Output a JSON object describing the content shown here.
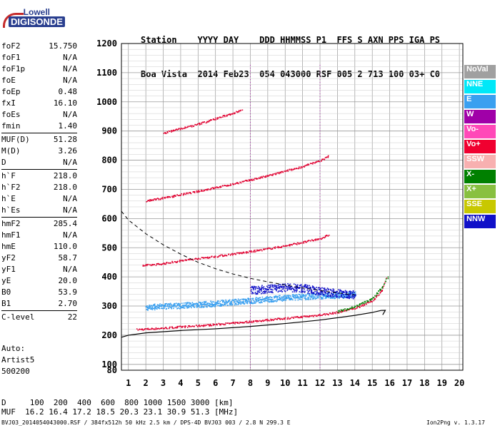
{
  "logo": {
    "line1": "Lowell",
    "line2": "DIGISONDE"
  },
  "header": {
    "row1": "Station    YYYY DAY    DDD HHMMSS P1  FFS S AXN PPS IGA PS",
    "row2": "Boa Vista  2014 Feb23  054 043000 RSF 005 2 713 100 03+ C0"
  },
  "params": [
    {
      "group": [
        {
          "name": "foF2",
          "value": "15.750"
        },
        {
          "name": "foF1",
          "value": "N/A"
        },
        {
          "name": "foF1p",
          "value": "N/A"
        },
        {
          "name": "foE",
          "value": "N/A"
        },
        {
          "name": "foEp",
          "value": "0.48"
        },
        {
          "name": "fxI",
          "value": "16.10"
        },
        {
          "name": "foEs",
          "value": "N/A"
        },
        {
          "name": "fmin",
          "value": "1.40"
        }
      ]
    },
    {
      "group": [
        {
          "name": "MUF(D)",
          "value": "51.28"
        },
        {
          "name": "M(D)",
          "value": "3.26"
        },
        {
          "name": "D",
          "value": "N/A"
        }
      ]
    },
    {
      "group": [
        {
          "name": "h`F",
          "value": "218.0"
        },
        {
          "name": "h`F2",
          "value": "218.0"
        },
        {
          "name": "h`E",
          "value": "N/A"
        },
        {
          "name": "h`Es",
          "value": "N/A"
        }
      ]
    },
    {
      "group": [
        {
          "name": "hmF2",
          "value": "285.4"
        },
        {
          "name": "hmF1",
          "value": "N/A"
        },
        {
          "name": "hmE",
          "value": "110.0"
        },
        {
          "name": "yF2",
          "value": "58.7"
        },
        {
          "name": "yF1",
          "value": "N/A"
        },
        {
          "name": "yE",
          "value": "20.0"
        },
        {
          "name": "B0",
          "value": "53.9"
        },
        {
          "name": "B1",
          "value": "2.70"
        }
      ]
    },
    {
      "group": [
        {
          "name": "C-level",
          "value": "22"
        }
      ]
    }
  ],
  "auto": {
    "line1": "Auto:",
    "line2": "Artist5",
    "line3": "500200"
  },
  "muf_table": {
    "d_row": "D     100  200  400  600  800 1000 1500 3000 [km]",
    "muf_row": "MUF  16.2 16.4 17.2 18.5 20.3 23.1 30.9 51.3 [MHz]"
  },
  "footer": {
    "left": "BVJ03_2014054043000.RSF / 384fx512h 50 kHz 2.5 km / DPS-4D BVJ03 003 / 2.8 N 299.3 E",
    "right": "Ion2Png v. 1.3.17"
  },
  "legend": [
    {
      "label": "NoVal",
      "color": "#a0a0a0",
      "text_color": "#ffffff"
    },
    {
      "label": "NNE",
      "color": "#00e8f8",
      "text_color": "#ffffff"
    },
    {
      "label": "E",
      "color": "#3aa0f0",
      "text_color": "#ffffff"
    },
    {
      "label": "W",
      "color": "#a000a8",
      "text_color": "#ffffff"
    },
    {
      "label": "Vo-",
      "color": "#ff48b8",
      "text_color": "#ffffff"
    },
    {
      "label": "Vo+",
      "color": "#f00030",
      "text_color": "#ffffff"
    },
    {
      "label": "SSW",
      "color": "#f8b0b0",
      "text_color": "#ffffff"
    },
    {
      "label": "X-",
      "color": "#008000",
      "text_color": "#ffffff"
    },
    {
      "label": "X+",
      "color": "#88c040",
      "text_color": "#ffffff"
    },
    {
      "label": "SSE",
      "color": "#c8c800",
      "text_color": "#ffffff"
    },
    {
      "label": "NNW",
      "color": "#1010c8",
      "text_color": "#ffffff"
    }
  ],
  "chart_data": {
    "type": "scatter",
    "title": "",
    "xlabel": "",
    "ylabel": "",
    "xlim": [
      0.6,
      20.2
    ],
    "ylim": [
      80,
      1200
    ],
    "x_ticks": [
      1,
      2,
      3,
      4,
      5,
      6,
      7,
      8,
      9,
      10,
      11,
      12,
      13,
      14,
      15,
      16,
      17,
      18,
      19,
      20
    ],
    "y_ticks": [
      80,
      100,
      200,
      300,
      400,
      500,
      600,
      700,
      800,
      900,
      1000,
      1100,
      1200
    ],
    "grid": true,
    "traces": [
      {
        "name": "o-trace F2",
        "color": "#e00030",
        "points": [
          [
            1.5,
            221
          ],
          [
            3,
            226
          ],
          [
            5,
            234
          ],
          [
            7,
            243
          ],
          [
            9,
            254
          ],
          [
            11,
            265
          ],
          [
            12,
            271
          ],
          [
            13,
            280
          ],
          [
            14,
            294
          ],
          [
            15,
            320
          ],
          [
            15.6,
            360
          ],
          [
            15.8,
            400
          ]
        ]
      },
      {
        "name": "o-trace 2-hop",
        "color": "#e00030",
        "points": [
          [
            1.8,
            440
          ],
          [
            3,
            447
          ],
          [
            4,
            457
          ],
          [
            6,
            472
          ],
          [
            8,
            488
          ],
          [
            10,
            508
          ],
          [
            11,
            520
          ],
          [
            12,
            533
          ],
          [
            12.5,
            545
          ]
        ]
      },
      {
        "name": "o-trace 3-hop",
        "color": "#e00030",
        "points": [
          [
            2,
            662
          ],
          [
            3,
            672
          ],
          [
            5,
            695
          ],
          [
            7,
            720
          ],
          [
            9,
            748
          ],
          [
            11,
            780
          ],
          [
            12,
            800
          ],
          [
            12.5,
            815
          ]
        ]
      },
      {
        "name": "o-trace 4-hop",
        "color": "#e00030",
        "points": [
          [
            3,
            895
          ],
          [
            4,
            910
          ],
          [
            5,
            925
          ],
          [
            6,
            944
          ],
          [
            7,
            963
          ],
          [
            7.5,
            975
          ]
        ]
      },
      {
        "name": "x-trace",
        "color": "#008000",
        "points": [
          [
            13,
            283
          ],
          [
            14,
            300
          ],
          [
            15,
            327
          ],
          [
            15.6,
            370
          ],
          [
            15.9,
            405
          ]
        ]
      },
      {
        "name": "E-region echoes",
        "color": "#3aa0f0",
        "points": [
          [
            2,
            297
          ],
          [
            4,
            303
          ],
          [
            6,
            310
          ],
          [
            8,
            320
          ],
          [
            10,
            330
          ],
          [
            12,
            336
          ],
          [
            14,
            340
          ]
        ]
      },
      {
        "name": "W echoes",
        "color": "#1010c8",
        "points": [
          [
            8,
            355
          ],
          [
            9,
            360
          ],
          [
            10,
            365
          ],
          [
            11,
            362
          ],
          [
            12,
            352
          ],
          [
            13,
            345
          ],
          [
            14,
            340
          ]
        ]
      }
    ],
    "profile": {
      "name": "true-height profile",
      "color": "#000000",
      "points": [
        [
          0.6,
          193
        ],
        [
          1,
          200
        ],
        [
          2,
          208
        ],
        [
          4,
          216
        ],
        [
          6,
          222
        ],
        [
          8,
          230
        ],
        [
          10,
          240
        ],
        [
          12,
          252
        ],
        [
          14,
          268
        ],
        [
          15,
          278
        ],
        [
          15.5,
          285
        ],
        [
          15.75,
          285.4
        ],
        [
          15.6,
          270
        ]
      ]
    },
    "model": {
      "name": "dashed curve",
      "color": "#000000",
      "points": [
        [
          0.6,
          625
        ],
        [
          1,
          595
        ],
        [
          2,
          548
        ],
        [
          3,
          510
        ],
        [
          4,
          478
        ],
        [
          5,
          450
        ],
        [
          6,
          428
        ],
        [
          7,
          410
        ],
        [
          8,
          395
        ],
        [
          9,
          383
        ],
        [
          10,
          372
        ],
        [
          11,
          362
        ],
        [
          12,
          353
        ],
        [
          13,
          345
        ],
        [
          14,
          338
        ]
      ]
    }
  }
}
